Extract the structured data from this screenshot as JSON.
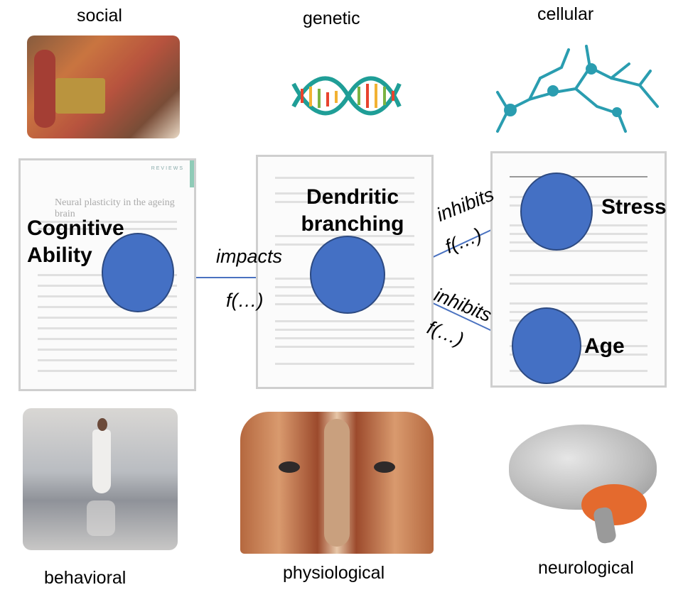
{
  "captions": {
    "social": "social",
    "genetic": "genetic",
    "cellular": "cellular",
    "behavioral": "behavioral",
    "physiological": "physiological",
    "neurological": "neurological"
  },
  "nodes": {
    "cognitive": "Cognitive Ability",
    "dendritic": "Dendritic branching",
    "stress": "Stress",
    "age": "Age"
  },
  "edges": {
    "impacts": "impacts",
    "impacts_f": "f(…)",
    "stress_inhibits": "inhibits",
    "stress_f": "f(…)",
    "age_inhibits": "inhibits",
    "age_f": "f(…)"
  },
  "papers": {
    "left_title": "Neural plasticity in the ageing brain",
    "left_tag": "REVIEWS"
  },
  "colors": {
    "node_fill": "#4470c4",
    "edge": "#4a72c0"
  }
}
